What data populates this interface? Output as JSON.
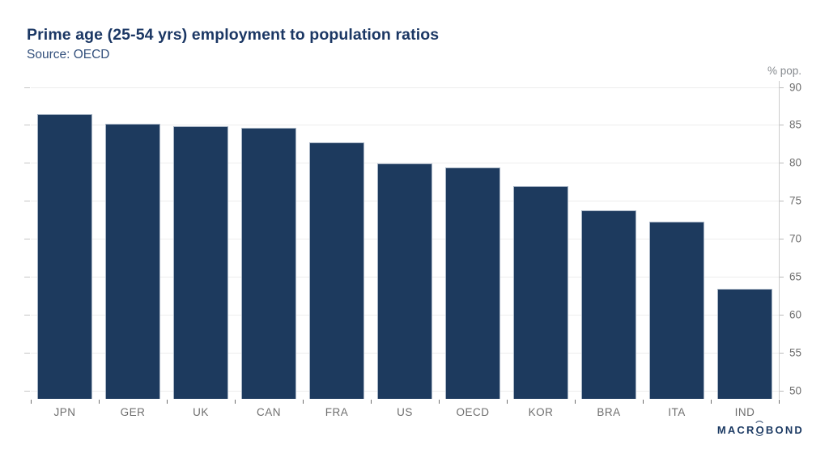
{
  "chart_data": {
    "type": "bar",
    "title": "Prime age (25-54 yrs) employment to population ratios",
    "subtitle": "Source: OECD",
    "unit_label": "% pop.",
    "categories": [
      "JPN",
      "GER",
      "UK",
      "CAN",
      "FRA",
      "US",
      "OECD",
      "KOR",
      "BRA",
      "ITA",
      "IND"
    ],
    "values": [
      86.4,
      85.2,
      84.8,
      84.6,
      82.7,
      79.9,
      79.4,
      76.9,
      73.7,
      72.3,
      63.4
    ],
    "xlabel": "",
    "ylabel": "% pop.",
    "ylim": [
      48.9,
      90.8
    ],
    "yticks": [
      50,
      55,
      60,
      65,
      70,
      75,
      80,
      85,
      90
    ],
    "grid": "horizontal gridlines, y-axis on right side",
    "legend": "none",
    "bar_color": "#1d3a5e",
    "bar_border_color": "#a9b6c6",
    "grid_color": "#ededed",
    "axis_line_color": "#cccccc",
    "tick_text_color": "#6e6e6e",
    "title_color": "#1b3764",
    "subtitle_color": "#33507c"
  },
  "branding": {
    "logo_prefix": "MACR",
    "logo_o": "O",
    "logo_suffix": "BOND"
  }
}
